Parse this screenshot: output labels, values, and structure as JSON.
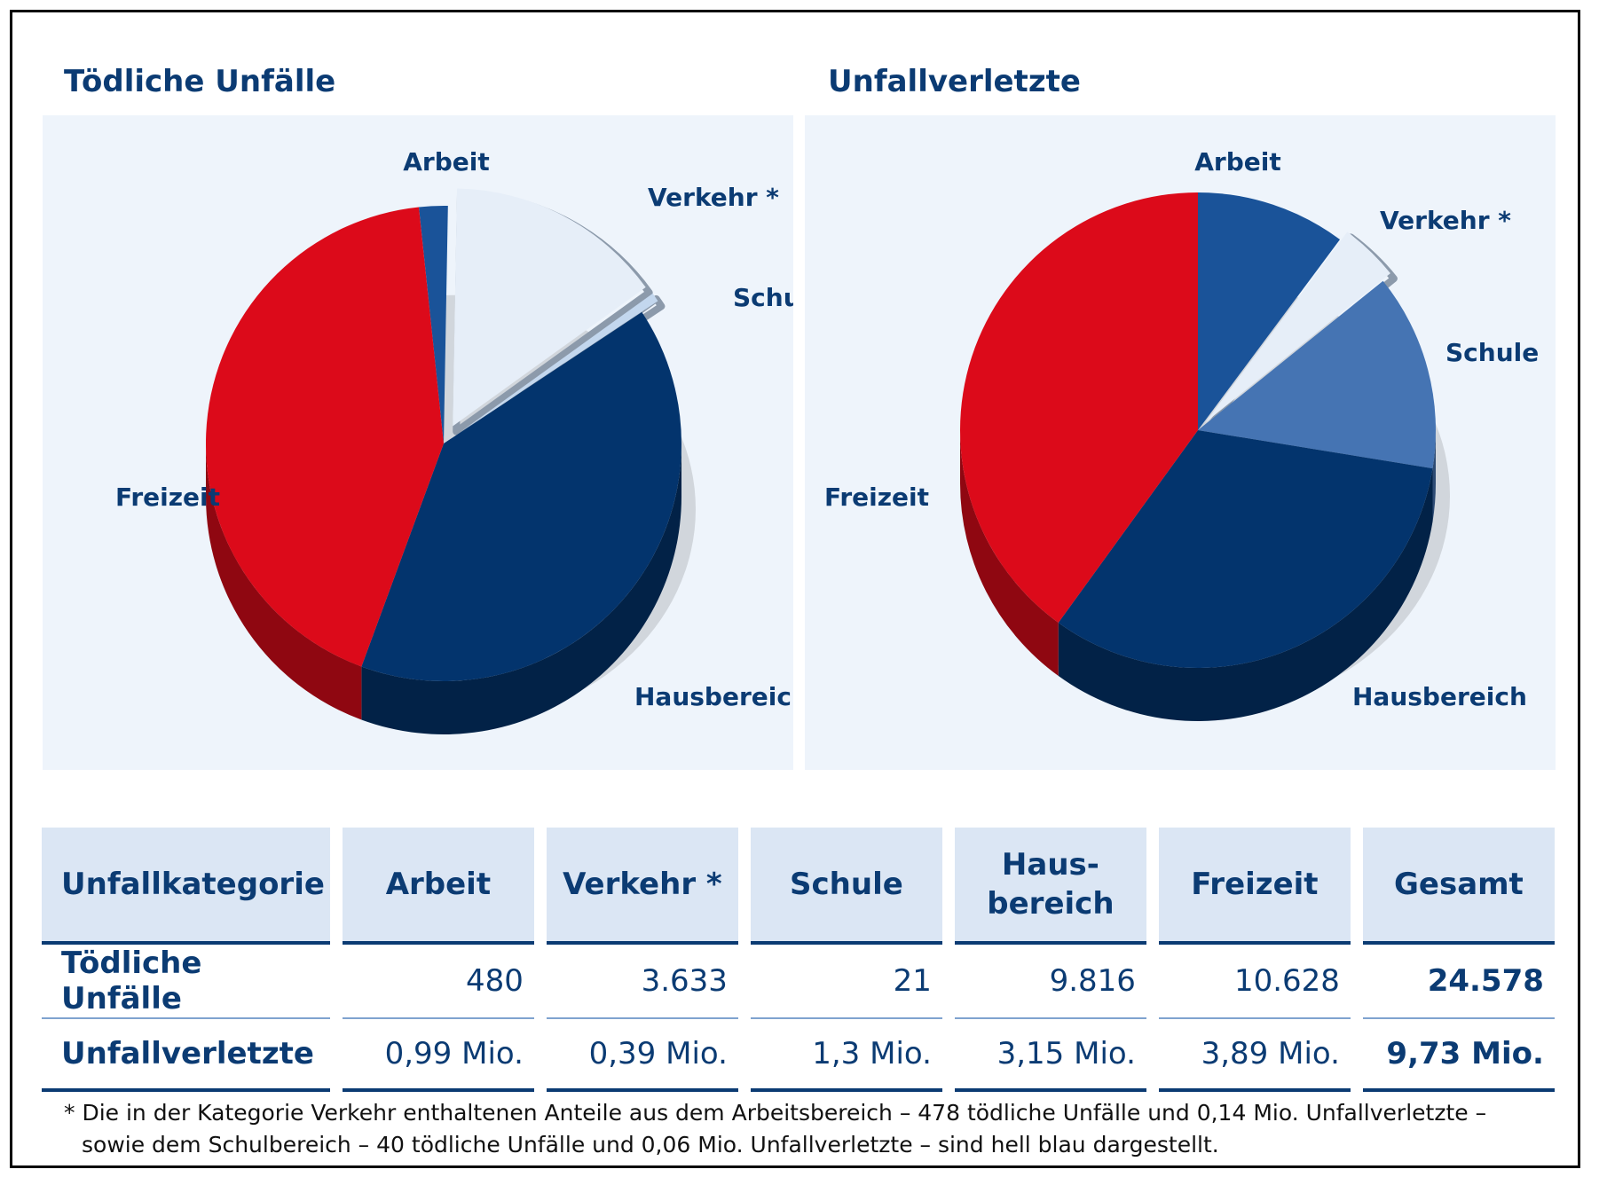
{
  "chart_data": [
    {
      "type": "pie",
      "title": "Tödliche Unfälle",
      "slices": [
        {
          "label": "Arbeit",
          "value": 480,
          "color": "#1a5399"
        },
        {
          "label": "Verkehr *",
          "value": 3633,
          "color": "#e6eef8"
        },
        {
          "label": "Schule",
          "value": 21,
          "color": "#c3d7ee"
        },
        {
          "label": "Hausbereich",
          "value": 9816,
          "color": "#03346d"
        },
        {
          "label": "Freizeit",
          "value": 10628,
          "color": "#dc0a1a"
        }
      ]
    },
    {
      "type": "pie",
      "title": "Unfallverletzte",
      "slices": [
        {
          "label": "Arbeit",
          "value": 0.99,
          "color": "#1a5399"
        },
        {
          "label": "Verkehr *",
          "value": 0.39,
          "color": "#e6eef8"
        },
        {
          "label": "Schule",
          "value": 1.3,
          "color": "#4574b3"
        },
        {
          "label": "Hausbereich",
          "value": 3.15,
          "color": "#03346d"
        },
        {
          "label": "Freizeit",
          "value": 3.89,
          "color": "#dc0a1a"
        }
      ]
    }
  ],
  "table": {
    "headers": [
      "Unfallkategorie",
      "Arbeit",
      "Verkehr *",
      "Schule",
      "Haus-",
      "bereich",
      "Freizeit",
      "Gesamt"
    ],
    "rows": [
      {
        "label": "Tödliche Unfälle",
        "values": [
          "480",
          "3.633",
          "21",
          "9.816",
          "10.628",
          "24.578"
        ]
      },
      {
        "label": "Unfallverletzte",
        "values": [
          "0,99 Mio.",
          "0,39 Mio.",
          "1,3 Mio.",
          "3,15 Mio.",
          "3,89 Mio.",
          "9,73 Mio."
        ]
      }
    ]
  },
  "footnote": {
    "line1": "* Die in der Kategorie Verkehr enthaltenen Anteile aus dem Arbeitsbereich – 478 tödliche Unfälle und 0,14 Mio. Unfallverletzte –",
    "line2": "sowie dem Schulbereich – 40 tödliche Unfälle und 0,06 Mio. Unfallverletzte – sind hell blau dargestellt."
  }
}
